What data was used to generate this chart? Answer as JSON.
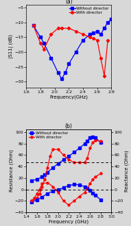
{
  "top": {
    "title": "(a)",
    "xlabel": "Frequency(GHz)",
    "ylabel": "|S11| (dB)",
    "xlim": [
      1.6,
      2.8
    ],
    "ylim": [
      -32,
      -4
    ],
    "yticks": [
      -30,
      -25,
      -20,
      -15,
      -10,
      -5
    ],
    "xticks": [
      1.6,
      1.8,
      2.0,
      2.2,
      2.4,
      2.6,
      2.8
    ],
    "blue_x": [
      1.7,
      1.8,
      1.85,
      1.95,
      2.05,
      2.1,
      2.15,
      2.2,
      2.3,
      2.4,
      2.5,
      2.55,
      2.6,
      2.65,
      2.7,
      2.75,
      2.8
    ],
    "blue_y": [
      -11,
      -15,
      -17,
      -22,
      -27,
      -29,
      -27,
      -24,
      -20,
      -16,
      -14,
      -13.5,
      -13,
      -14,
      -12,
      -10,
      -9
    ],
    "red_x": [
      1.7,
      1.8,
      1.85,
      1.95,
      2.05,
      2.1,
      2.2,
      2.3,
      2.4,
      2.5,
      2.55,
      2.6,
      2.65,
      2.7,
      2.75
    ],
    "red_y": [
      -11,
      -17,
      -19,
      -14,
      -12,
      -12,
      -12,
      -13,
      -14,
      -15,
      -15.5,
      -16,
      -22,
      -28,
      -16
    ],
    "blue_color": "#0000ff",
    "red_color": "#ff0000",
    "legend_blue": "Without director",
    "legend_red": "With director"
  },
  "bottom": {
    "title": "(b)",
    "xlabel": "Frequency (GHz)",
    "ylabel_left": "Resistance (Ohm)",
    "ylabel_right": "Reactance (Ohm)",
    "xlim": [
      1.4,
      3.0
    ],
    "ylim": [
      -40,
      105
    ],
    "yticks": [
      -40,
      -20,
      0,
      20,
      40,
      60,
      80,
      100
    ],
    "xticks": [
      1.4,
      1.6,
      1.8,
      2.0,
      2.2,
      2.4,
      2.6,
      2.8,
      3.0
    ],
    "hlines": [
      0,
      47
    ],
    "blue_resist_x": [
      1.5,
      1.6,
      1.7,
      1.75,
      1.8,
      1.9,
      2.0,
      2.1,
      2.2,
      2.3,
      2.4,
      2.5,
      2.55,
      2.6,
      2.65,
      2.7,
      2.8
    ],
    "blue_resist_y": [
      15,
      18,
      22,
      26,
      30,
      38,
      45,
      52,
      58,
      65,
      72,
      80,
      85,
      90,
      92,
      90,
      82
    ],
    "red_resist_x": [
      1.5,
      1.6,
      1.65,
      1.7,
      1.75,
      1.8,
      1.85,
      1.9,
      2.0,
      2.1,
      2.2,
      2.3,
      2.4,
      2.5,
      2.55,
      2.6,
      2.65,
      2.7,
      2.8
    ],
    "red_resist_y": [
      -20,
      -15,
      -8,
      5,
      18,
      38,
      58,
      70,
      70,
      60,
      52,
      47,
      47,
      47,
      55,
      72,
      82,
      86,
      84
    ],
    "blue_react_x": [
      1.5,
      1.6,
      1.7,
      1.8,
      1.9,
      2.0,
      2.1,
      2.2,
      2.3,
      2.4,
      2.5,
      2.55,
      2.6,
      2.65,
      2.7,
      2.8
    ],
    "blue_react_y": [
      -22,
      -18,
      -13,
      -7,
      -3,
      0,
      3,
      7,
      9,
      8,
      5,
      2,
      -2,
      -6,
      -10,
      -18
    ],
    "red_react_x": [
      1.5,
      1.55,
      1.6,
      1.65,
      1.7,
      1.8,
      1.9,
      2.0,
      2.1,
      2.2,
      2.3,
      2.4,
      2.5,
      2.6,
      2.65,
      2.7,
      2.8
    ],
    "red_react_y": [
      -20,
      -15,
      -8,
      0,
      10,
      12,
      5,
      -5,
      -20,
      -27,
      -20,
      -12,
      -5,
      10,
      18,
      22,
      28
    ],
    "blue_color": "#0000ff",
    "red_color": "#ff0000",
    "legend_blue": "Without director",
    "legend_red": "With director"
  },
  "bg_color": "#d8d8d8",
  "fig_width": 1.91,
  "fig_height": 3.3,
  "dpi": 100
}
